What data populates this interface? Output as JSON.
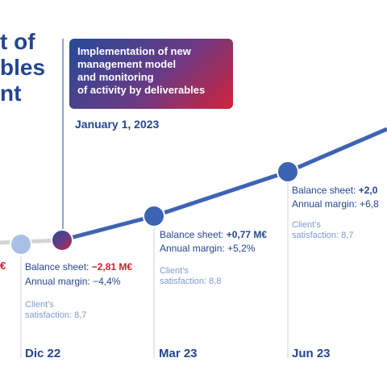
{
  "title": {
    "lines": [
      "t of",
      "bles",
      "nt"
    ]
  },
  "callout": {
    "text": "Implementation of new\nmanagement model\nand monitoring\nof activity by deliverables",
    "date": "January 1, 2023"
  },
  "timeline": {
    "left_fragment": "€",
    "points": [
      {
        "month": "Dic 22",
        "balance_label": "Balance sheet:",
        "balance_value": "−2,81 M€",
        "margin_label": "Annual margin:",
        "margin_value": "−4,4%",
        "sat_line1": "Client’s",
        "sat_line2": "satisfaction: 8,7"
      },
      {
        "month": "Mar 23",
        "balance_label": "Balance sheet:",
        "balance_value": "+0,77 M€",
        "margin_label": "Annual margin:",
        "margin_value": "+5,2%",
        "sat_line1": "Client’s",
        "sat_line2": "satisfaction: 8,8"
      },
      {
        "month": "Jun 23",
        "balance_label": "Balance sheet:",
        "balance_value": "+2,0",
        "margin_label": "Annual margin:",
        "margin_value": "+6,8",
        "sat_line1": "Client’s",
        "sat_line2": "satisfaction: 8,7"
      }
    ]
  },
  "colors": {
    "brand_blue": "#24468f",
    "line_blue": "#3d64b4",
    "negative_red": "#c8202e",
    "grey_line": "#d4d4d4",
    "light_dot": "#a9c0e6"
  }
}
